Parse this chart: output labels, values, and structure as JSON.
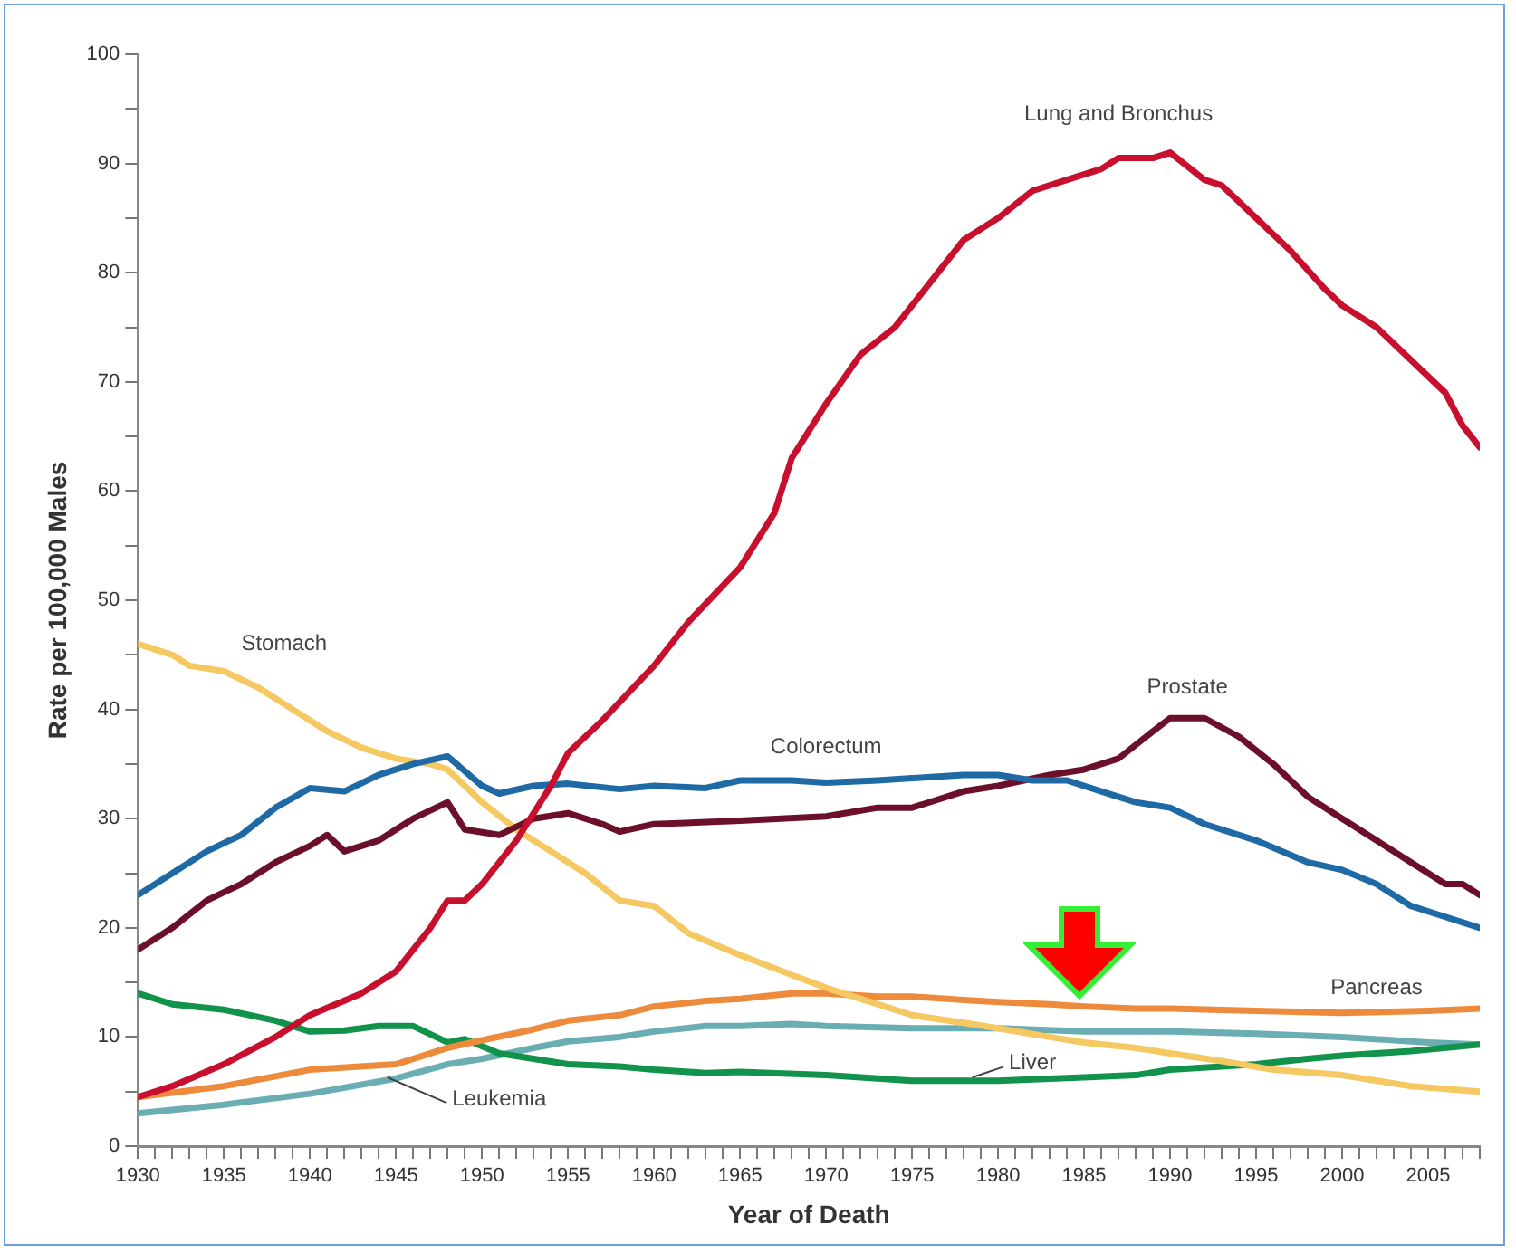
{
  "chart_data": {
    "type": "line",
    "xlabel": "Year of Death",
    "ylabel": "Rate per 100,000 Males",
    "xlim": [
      1930,
      2008
    ],
    "ylim": [
      0,
      100
    ],
    "xticks": [
      1930,
      {
        "value": 1931,
        "label": null
      },
      {
        "value": 1932,
        "label": null
      },
      {
        "value": 1933,
        "label": null
      },
      {
        "value": 1934,
        "label": null
      },
      1935,
      {
        "value": 1936,
        "label": null
      },
      {
        "value": 1937,
        "label": null
      },
      {
        "value": 1938,
        "label": null
      },
      {
        "value": 1939,
        "label": null
      },
      1940,
      {
        "value": 1941,
        "label": null
      },
      {
        "value": 1942,
        "label": null
      },
      {
        "value": 1943,
        "label": null
      },
      {
        "value": 1944,
        "label": null
      },
      1945,
      {
        "value": 1946,
        "label": null
      },
      {
        "value": 1947,
        "label": null
      },
      {
        "value": 1948,
        "label": null
      },
      {
        "value": 1949,
        "label": null
      },
      1950,
      {
        "value": 1951,
        "label": null
      },
      {
        "value": 1952,
        "label": null
      },
      {
        "value": 1953,
        "label": null
      },
      {
        "value": 1954,
        "label": null
      },
      1955,
      {
        "value": 1956,
        "label": null
      },
      {
        "value": 1957,
        "label": null
      },
      {
        "value": 1958,
        "label": null
      },
      {
        "value": 1959,
        "label": null
      },
      1960,
      {
        "value": 1961,
        "label": null
      },
      {
        "value": 1962,
        "label": null
      },
      {
        "value": 1963,
        "label": null
      },
      {
        "value": 1964,
        "label": null
      },
      1965,
      {
        "value": 1966,
        "label": null
      },
      {
        "value": 1967,
        "label": null
      },
      {
        "value": 1968,
        "label": null
      },
      {
        "value": 1969,
        "label": null
      },
      1970,
      {
        "value": 1971,
        "label": null
      },
      {
        "value": 1972,
        "label": null
      },
      {
        "value": 1973,
        "label": null
      },
      {
        "value": 1974,
        "label": null
      },
      1975,
      {
        "value": 1976,
        "label": null
      },
      {
        "value": 1977,
        "label": null
      },
      {
        "value": 1978,
        "label": null
      },
      {
        "value": 1979,
        "label": null
      },
      1980,
      {
        "value": 1981,
        "label": null
      },
      {
        "value": 1982,
        "label": null
      },
      {
        "value": 1983,
        "label": null
      },
      {
        "value": 1984,
        "label": null
      },
      1985,
      {
        "value": 1986,
        "label": null
      },
      {
        "value": 1987,
        "label": null
      },
      {
        "value": 1988,
        "label": null
      },
      {
        "value": 1989,
        "label": null
      },
      1990,
      {
        "value": 1991,
        "label": null
      },
      {
        "value": 1992,
        "label": null
      },
      {
        "value": 1993,
        "label": null
      },
      {
        "value": 1994,
        "label": null
      },
      1995,
      {
        "value": 1996,
        "label": null
      },
      {
        "value": 1997,
        "label": null
      },
      {
        "value": 1998,
        "label": null
      },
      {
        "value": 1999,
        "label": null
      },
      2000,
      {
        "value": 2001,
        "label": null
      },
      {
        "value": 2002,
        "label": null
      },
      {
        "value": 2003,
        "label": null
      },
      {
        "value": 2004,
        "label": null
      },
      2005,
      {
        "value": 2006,
        "label": null
      },
      {
        "value": 2007,
        "label": null
      },
      {
        "value": 2008,
        "label": null
      }
    ],
    "yticks": [
      0,
      {
        "value": 5,
        "label": null
      },
      10,
      {
        "value": 15,
        "label": null
      },
      20,
      {
        "value": 25,
        "label": null
      },
      30,
      {
        "value": 35,
        "label": null
      },
      40,
      {
        "value": 45,
        "label": null
      },
      50,
      {
        "value": 55,
        "label": null
      },
      60,
      {
        "value": 65,
        "label": null
      },
      70,
      {
        "value": 75,
        "label": null
      },
      80,
      {
        "value": 85,
        "label": null
      },
      90,
      {
        "value": 95,
        "label": null
      },
      100
    ],
    "grid": false,
    "legend": false,
    "marker": "none",
    "line_style": "solid",
    "series": [
      {
        "name": "Lung and Bronchus",
        "color": "#c8102e",
        "x": [
          1930,
          1932,
          1935,
          1938,
          1940,
          1943,
          1945,
          1947,
          1948,
          1949,
          1950,
          1952,
          1954,
          1955,
          1957,
          1960,
          1962,
          1965,
          1967,
          1968,
          1970,
          1972,
          1974,
          1976,
          1978,
          1980,
          1982,
          1984,
          1986,
          1987,
          1989,
          1990,
          1992,
          1993,
          1995,
          1997,
          1999,
          2000,
          2002,
          2004,
          2006,
          2007,
          2008
        ],
        "values": [
          4.5,
          5.5,
          7.5,
          10,
          12,
          14,
          16,
          20,
          22.5,
          22.5,
          24,
          28,
          33,
          36,
          39,
          44,
          48,
          53,
          58,
          63,
          68,
          72.5,
          75,
          79,
          83,
          85,
          87.5,
          88.5,
          89.5,
          90.5,
          90.5,
          91,
          88.5,
          88,
          85,
          82,
          78.5,
          77,
          75,
          72,
          69,
          66,
          64
        ]
      },
      {
        "name": "Colorectum",
        "color": "#1f6aa5",
        "x": [
          1930,
          1932,
          1934,
          1936,
          1938,
          1940,
          1942,
          1944,
          1946,
          1948,
          1950,
          1951,
          1953,
          1955,
          1958,
          1960,
          1963,
          1965,
          1968,
          1970,
          1973,
          1975,
          1978,
          1980,
          1982,
          1984,
          1986,
          1988,
          1990,
          1992,
          1995,
          1998,
          2000,
          2002,
          2004,
          2006,
          2008
        ],
        "values": [
          23,
          25,
          27,
          28.5,
          31,
          32.8,
          32.5,
          34,
          35,
          35.7,
          33,
          32.3,
          33,
          33.2,
          32.7,
          33,
          32.8,
          33.5,
          33.5,
          33.3,
          33.5,
          33.7,
          34,
          34,
          33.5,
          33.5,
          32.5,
          31.5,
          31,
          29.5,
          28,
          26,
          25.3,
          24,
          22,
          21,
          20
        ]
      },
      {
        "name": "Prostate",
        "color": "#6b0f2a",
        "x": [
          1930,
          1932,
          1934,
          1936,
          1938,
          1940,
          1941,
          1942,
          1944,
          1946,
          1948,
          1949,
          1951,
          1953,
          1955,
          1957,
          1958,
          1960,
          1965,
          1970,
          1973,
          1975,
          1978,
          1980,
          1983,
          1985,
          1987,
          1989,
          1990,
          1992,
          1994,
          1996,
          1998,
          2000,
          2002,
          2004,
          2006,
          2007,
          2008
        ],
        "values": [
          18,
          20,
          22.5,
          24,
          26,
          27.5,
          28.5,
          27,
          28,
          30,
          31.5,
          29,
          28.5,
          30,
          30.5,
          29.5,
          28.8,
          29.5,
          29.8,
          30.2,
          31,
          31,
          32.5,
          33,
          34,
          34.5,
          35.5,
          38,
          39.2,
          39.2,
          37.5,
          35,
          32,
          30,
          28,
          26,
          24,
          24,
          23
        ]
      },
      {
        "name": "Stomach",
        "color": "#f5c862",
        "x": [
          1930,
          1932,
          1933,
          1935,
          1937,
          1939,
          1941,
          1943,
          1945,
          1947,
          1948,
          1950,
          1952,
          1954,
          1956,
          1958,
          1960,
          1962,
          1965,
          1968,
          1970,
          1972,
          1975,
          1978,
          1980,
          1983,
          1985,
          1988,
          1990,
          1993,
          1996,
          2000,
          2004,
          2008
        ],
        "values": [
          46,
          45,
          44,
          43.5,
          42,
          40,
          38,
          36.5,
          35.5,
          35,
          34.5,
          31.5,
          29,
          27,
          25,
          22.5,
          22,
          19.5,
          17.5,
          15.7,
          14.5,
          13.5,
          12,
          11.3,
          10.8,
          10,
          9.5,
          9,
          8.5,
          7.8,
          7,
          6.5,
          5.5,
          5
        ]
      },
      {
        "name": "Pancreas",
        "color": "#ee8a3c",
        "x": [
          1930,
          1935,
          1940,
          1945,
          1948,
          1950,
          1953,
          1955,
          1958,
          1960,
          1963,
          1965,
          1968,
          1970,
          1973,
          1975,
          1978,
          1980,
          1983,
          1985,
          1988,
          1990,
          1995,
          2000,
          2005,
          2008
        ],
        "values": [
          4.5,
          5.5,
          7,
          7.5,
          9,
          9.7,
          10.7,
          11.5,
          12,
          12.8,
          13.3,
          13.5,
          14,
          14,
          13.7,
          13.7,
          13.4,
          13.2,
          13,
          12.8,
          12.6,
          12.6,
          12.4,
          12.2,
          12.4,
          12.6
        ]
      },
      {
        "name": "Liver",
        "color": "#11934b",
        "x": [
          1930,
          1932,
          1935,
          1938,
          1940,
          1942,
          1944,
          1946,
          1948,
          1949,
          1951,
          1955,
          1958,
          1960,
          1963,
          1965,
          1970,
          1975,
          1978,
          1980,
          1985,
          1988,
          1990,
          1993,
          1995,
          1998,
          2000,
          2004,
          2008
        ],
        "values": [
          14,
          13,
          12.5,
          11.5,
          10.5,
          10.6,
          11,
          11,
          9.5,
          9.8,
          8.5,
          7.5,
          7.3,
          7,
          6.7,
          6.8,
          6.5,
          6,
          6,
          6,
          6.3,
          6.5,
          7,
          7.3,
          7.5,
          8,
          8.3,
          8.7,
          9.3
        ]
      },
      {
        "name": "Leukemia",
        "color": "#6aaeb4",
        "x": [
          1930,
          1935,
          1940,
          1945,
          1948,
          1950,
          1953,
          1955,
          1958,
          1960,
          1963,
          1965,
          1968,
          1970,
          1975,
          1980,
          1985,
          1990,
          1995,
          2000,
          2005,
          2008
        ],
        "values": [
          3,
          3.8,
          4.8,
          6.2,
          7.5,
          8,
          9,
          9.6,
          10,
          10.5,
          11,
          11,
          11.2,
          11,
          10.8,
          10.8,
          10.5,
          10.5,
          10.3,
          10,
          9.5,
          9.3
        ]
      }
    ]
  }
}
